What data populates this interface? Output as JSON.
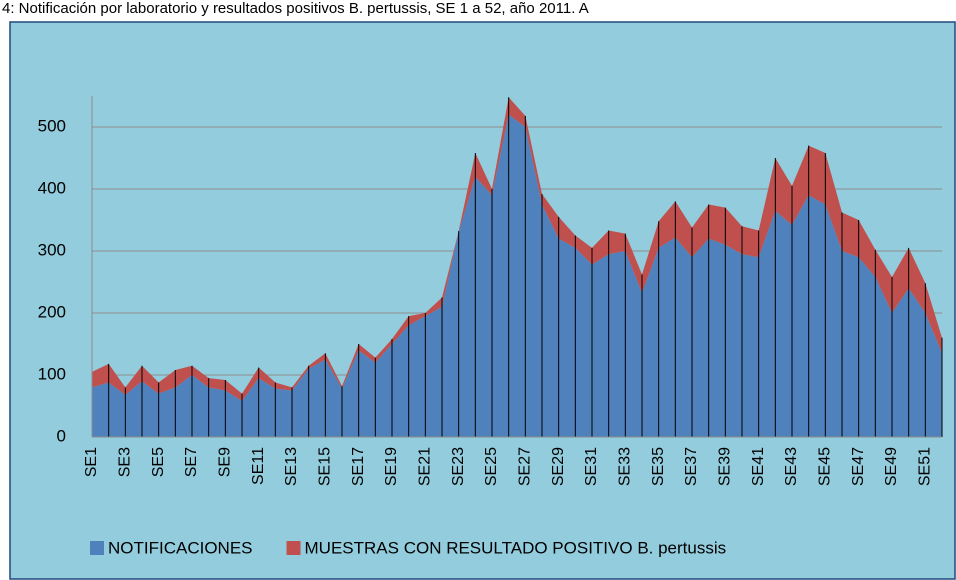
{
  "chart_data": {
    "type": "stacked-area",
    "title": "4: Notificación por laboratorio y resultados positivos B. pertussis, SE 1 a 52, año 2011. A",
    "categories": [
      "SE1",
      null,
      "SE3",
      null,
      "SE5",
      null,
      "SE7",
      null,
      "SE9",
      null,
      "SE11",
      null,
      "SE13",
      null,
      "SE15",
      null,
      "SE17",
      null,
      "SE19",
      null,
      "SE21",
      null,
      "SE23",
      null,
      "SE25",
      null,
      "SE27",
      null,
      "SE29",
      null,
      "SE31",
      null,
      "SE33",
      null,
      "SE35",
      null,
      "SE37",
      null,
      "SE39",
      null,
      "SE41",
      null,
      "SE43",
      null,
      "SE45",
      null,
      "SE47",
      null,
      "SE49",
      null,
      "SE51",
      null
    ],
    "series": [
      {
        "name": "NOTIFICACIONES",
        "color": "#4f81bd",
        "values": [
          80,
          88,
          68,
          90,
          70,
          80,
          100,
          80,
          75,
          58,
          95,
          78,
          75,
          110,
          125,
          78,
          140,
          120,
          150,
          180,
          195,
          210,
          330,
          420,
          390,
          520,
          500,
          375,
          320,
          305,
          278,
          295,
          300,
          232,
          305,
          322,
          290,
          320,
          310,
          295,
          290,
          365,
          342,
          390,
          375,
          300,
          290,
          258,
          200,
          240,
          200,
          135
        ]
      },
      {
        "name": "MUESTRAS CON RESULTADO POSITIVO B. pertussis",
        "color": "#c0504d",
        "values": [
          25,
          30,
          12,
          25,
          18,
          28,
          15,
          15,
          17,
          12,
          17,
          10,
          5,
          5,
          10,
          4,
          10,
          8,
          8,
          15,
          5,
          15,
          2,
          38,
          10,
          28,
          18,
          17,
          35,
          20,
          27,
          38,
          28,
          30,
          43,
          58,
          48,
          55,
          60,
          45,
          43,
          85,
          63,
          80,
          83,
          62,
          60,
          44,
          58,
          65,
          48,
          25
        ]
      }
    ],
    "ylim": [
      0,
      550
    ],
    "yticks": [
      0,
      100,
      200,
      300,
      400,
      500
    ],
    "grid": true,
    "legend": "bottom"
  }
}
